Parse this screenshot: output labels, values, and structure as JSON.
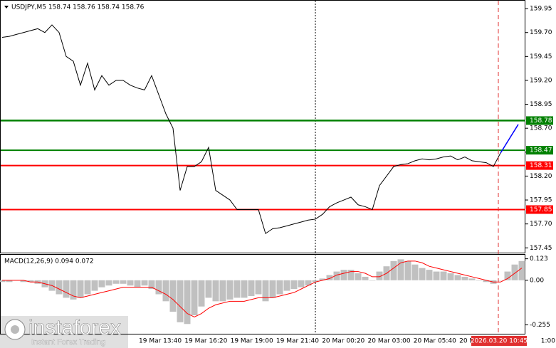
{
  "chart_data": [
    {
      "type": "line",
      "title": "USDJPY,M5  158.74 158.76 158.74 158.76",
      "values": [
        159.65,
        159.66,
        159.68,
        159.7,
        159.72,
        159.74,
        159.7,
        159.78,
        159.7,
        159.45,
        159.4,
        159.15,
        159.38,
        159.1,
        159.25,
        159.15,
        159.2,
        159.2,
        159.15,
        159.12,
        159.1,
        159.25,
        159.05,
        158.85,
        158.7,
        158.05,
        158.3,
        158.3,
        158.35,
        158.5,
        158.05,
        158.0,
        157.95,
        157.85,
        157.85,
        157.85,
        157.85,
        157.6,
        157.65,
        157.66,
        157.68,
        157.7,
        157.72,
        157.74,
        157.75,
        157.8,
        157.88,
        157.92,
        157.95,
        157.98,
        157.9,
        157.88,
        157.85,
        158.1,
        158.2,
        158.3,
        158.32,
        158.33,
        158.36,
        158.38,
        158.37,
        158.38,
        158.4,
        158.41,
        158.37,
        158.4,
        158.36,
        158.35,
        158.34,
        158.3,
        158.44
      ],
      "color": "#000000",
      "projection": {
        "values": [
          158.44,
          158.74
        ],
        "color": "#0000ff"
      },
      "levels": [
        {
          "value": 158.78,
          "color": "#008000"
        },
        {
          "value": 158.47,
          "color": "#008000"
        },
        {
          "value": 158.31,
          "color": "#ff0000"
        },
        {
          "value": 157.85,
          "color": "#ff0000"
        }
      ],
      "ylim": [
        157.4,
        160.04
      ],
      "yticks": [
        {
          "value": 159.95,
          "label": "159.95"
        },
        {
          "value": 159.7,
          "label": "159.70"
        },
        {
          "value": 159.45,
          "label": "159.45"
        },
        {
          "value": 159.2,
          "label": "159.20"
        },
        {
          "value": 158.95,
          "label": "158.95"
        },
        {
          "value": 158.7,
          "label": "158.70"
        },
        {
          "value": 158.45,
          "label": "158.45"
        },
        {
          "value": 158.2,
          "label": "158.20"
        },
        {
          "value": 157.95,
          "label": "157.95"
        },
        {
          "value": 157.7,
          "label": "157.70"
        },
        {
          "value": 157.45,
          "label": "157.45"
        }
      ]
    },
    {
      "type": "macd",
      "title": "MACD(12,26,9) 0.094 0.072",
      "histogram": {
        "color": "#c0c0c0",
        "values": [
          -0.01,
          -0.01,
          0.0,
          -0.01,
          -0.01,
          -0.02,
          -0.04,
          -0.06,
          -0.08,
          -0.1,
          -0.11,
          -0.1,
          -0.08,
          -0.06,
          -0.04,
          -0.03,
          -0.02,
          -0.02,
          -0.03,
          -0.04,
          -0.03,
          -0.05,
          -0.08,
          -0.12,
          -0.18,
          -0.24,
          -0.25,
          -0.2,
          -0.15,
          -0.1,
          -0.12,
          -0.12,
          -0.11,
          -0.1,
          -0.1,
          -0.09,
          -0.08,
          -0.12,
          -0.1,
          -0.08,
          -0.06,
          -0.05,
          -0.04,
          -0.03,
          -0.01,
          0.01,
          0.03,
          0.05,
          0.06,
          0.06,
          0.04,
          0.02,
          0.0,
          0.05,
          0.08,
          0.11,
          0.12,
          0.11,
          0.09,
          0.07,
          0.06,
          0.05,
          0.05,
          0.04,
          0.03,
          0.02,
          0.01,
          0.0,
          -0.01,
          -0.02,
          0.0,
          0.05,
          0.09,
          0.11
        ]
      },
      "signal": {
        "color": "#ff0000",
        "values": [
          0.0,
          0.0,
          0.0,
          0.0,
          -0.01,
          -0.01,
          -0.02,
          -0.03,
          -0.05,
          -0.07,
          -0.09,
          -0.1,
          -0.09,
          -0.08,
          -0.07,
          -0.06,
          -0.05,
          -0.04,
          -0.04,
          -0.04,
          -0.04,
          -0.04,
          -0.06,
          -0.08,
          -0.11,
          -0.15,
          -0.19,
          -0.21,
          -0.19,
          -0.16,
          -0.14,
          -0.13,
          -0.12,
          -0.12,
          -0.12,
          -0.11,
          -0.1,
          -0.1,
          -0.1,
          -0.09,
          -0.08,
          -0.07,
          -0.05,
          -0.03,
          -0.01,
          0.0,
          0.01,
          0.03,
          0.04,
          0.05,
          0.05,
          0.04,
          0.02,
          0.02,
          0.04,
          0.07,
          0.1,
          0.11,
          0.11,
          0.1,
          0.08,
          0.07,
          0.06,
          0.05,
          0.04,
          0.03,
          0.02,
          0.01,
          0.0,
          -0.01,
          -0.01,
          0.01,
          0.04,
          0.07
        ]
      },
      "ylim": [
        -0.31,
        0.15
      ],
      "yticks": [
        0.123,
        {
          "value": 0,
          "label": "0.00"
        },
        -0.255
      ]
    }
  ],
  "x_axis": {
    "labels": [
      "19 Mar 13:40",
      "19 Mar 16:20",
      "19 Mar 19:00",
      "19 Mar 21:40",
      "20 Mar 00:20",
      "20 Mar 03:00",
      "20 Mar 05:40",
      "20 M",
      "1:00"
    ],
    "current_time": "2026.03.20 10:45"
  },
  "branding": {
    "logo": "instaforex",
    "tagline": "Instant Forex Trading"
  }
}
